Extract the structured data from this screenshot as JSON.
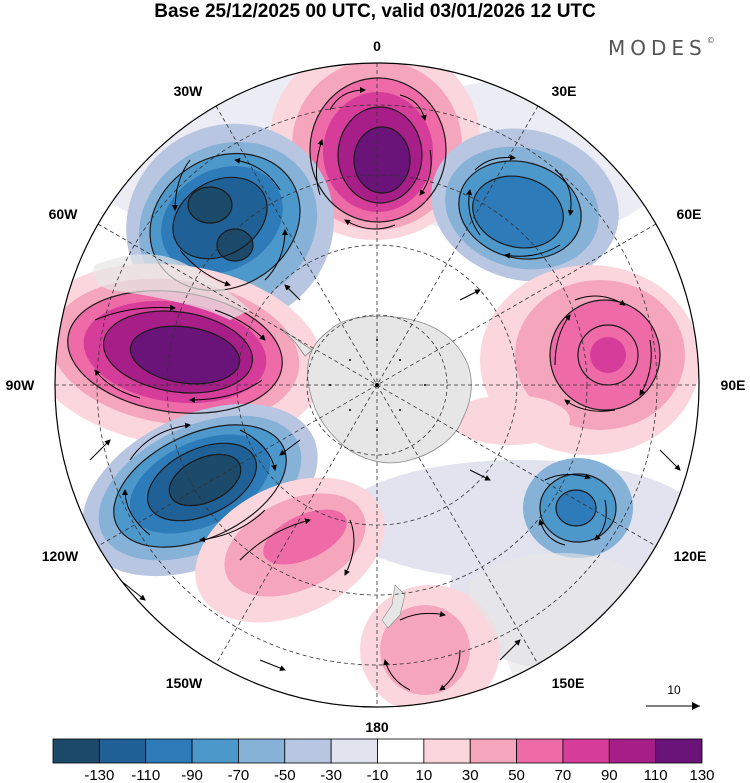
{
  "title": "Base 25/12/2025 00 UTC, valid 03/01/2026 12 UTC",
  "brand": "MODES",
  "brand_mark": "©",
  "longitude_labels": {
    "lon_0": "0",
    "lon_30E": "30E",
    "lon_60E": "60E",
    "lon_90E": "90E",
    "lon_120E": "120E",
    "lon_150E": "150E",
    "lon_180": "180",
    "lon_150W": "150W",
    "lon_120W": "120W",
    "lon_90W": "90W",
    "lon_60W": "60W",
    "lon_30W": "30W"
  },
  "reference_vector": {
    "value": "10"
  },
  "colorbar": {
    "ticks": [
      "-130",
      "-110",
      "-90",
      "-70",
      "-50",
      "-30",
      "-10",
      "10",
      "30",
      "50",
      "70",
      "90",
      "110",
      "130"
    ],
    "colors": [
      "#1b4a6b",
      "#1f6196",
      "#2d7bb8",
      "#4d98cb",
      "#86b2d8",
      "#b9c6e2",
      "#e3e3f0",
      "#ffffff",
      "#fbd7dd",
      "#f5a6bd",
      "#ee6ba8",
      "#d63d9a",
      "#a81e88",
      "#6a1479"
    ]
  },
  "colors": {
    "land": "#e6e6e6",
    "negative_strong": "#1b4a6b",
    "positive_strong": "#6a1479"
  }
}
